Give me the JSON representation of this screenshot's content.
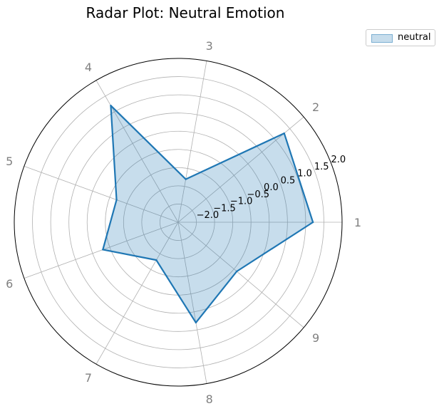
{
  "chart_data": {
    "type": "radar",
    "title": "Radar Plot: Neutral Emotion",
    "axes": [
      "1",
      "2",
      "3",
      "4",
      "5",
      "6",
      "7",
      "8",
      "9"
    ],
    "series": [
      {
        "name": "neutral",
        "values": [
          1.2,
          1.3,
          -1.3,
          1.2,
          -0.7,
          -0.3,
          -1.3,
          0.3,
          -0.4
        ]
      }
    ],
    "radial_ticks": [
      -2.0,
      -1.5,
      -1.0,
      -0.5,
      0.0,
      0.5,
      1.0,
      1.5,
      2.0
    ],
    "rlim": [
      -2.5,
      2.0
    ],
    "grid": true,
    "legend_position": "top-right",
    "colors": {
      "line": "#1f77b4",
      "fill": "#1f77b4",
      "grid": "#b0b0b0",
      "axis_label": "#808080"
    }
  }
}
